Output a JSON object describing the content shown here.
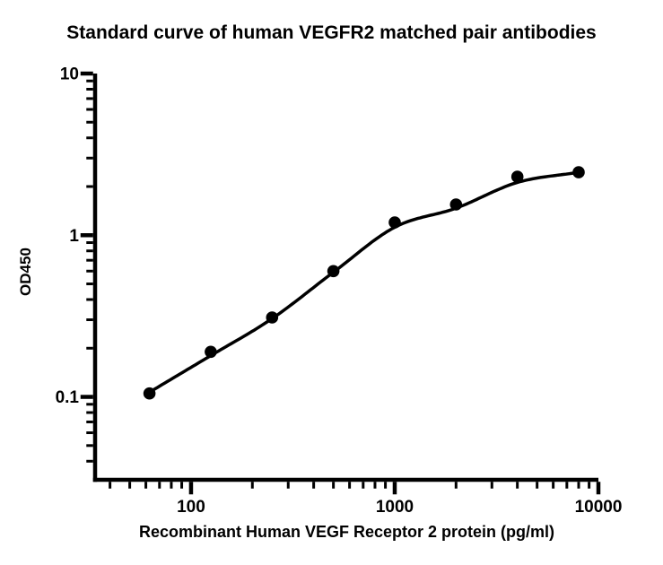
{
  "title": "Standard curve of human VEGFR2 matched pair antibodies",
  "colors": {
    "foreground": "#000000",
    "background": "#ffffff"
  },
  "chart_data": {
    "type": "scatter",
    "title": "Standard curve of human VEGFR2 matched pair antibodies",
    "xlabel": "Recombinant Human VEGF Receptor 2 protein (pg/ml)",
    "ylabel": "OD450",
    "x_scale": "log",
    "y_scale": "log",
    "xlim": [
      33.8,
      10000
    ],
    "ylim": [
      0.0307,
      10
    ],
    "grid": false,
    "legend": false,
    "x_ticks": {
      "values": [
        100,
        1000,
        10000
      ],
      "labels": [
        "100",
        "1000",
        "10000"
      ]
    },
    "y_ticks": {
      "values": [
        0.1,
        1,
        10
      ],
      "labels": [
        "0.1",
        "1",
        "10"
      ]
    },
    "series": [
      {
        "marker": "filled-circle",
        "marker_color": "#000000",
        "x": [
          62.5,
          125,
          250,
          500,
          1000,
          2000,
          4000,
          8000
        ],
        "y": [
          0.105,
          0.19,
          0.31,
          0.6,
          1.2,
          1.55,
          2.3,
          2.45
        ]
      }
    ],
    "fit_curve": {
      "type": "sigmoidal-4PL",
      "color": "#000000",
      "x": [
        62.5,
        125,
        250,
        500,
        1000,
        2000,
        4000,
        8000
      ],
      "y": [
        0.107,
        0.18,
        0.305,
        0.59,
        1.12,
        1.47,
        2.12,
        2.45
      ]
    }
  }
}
